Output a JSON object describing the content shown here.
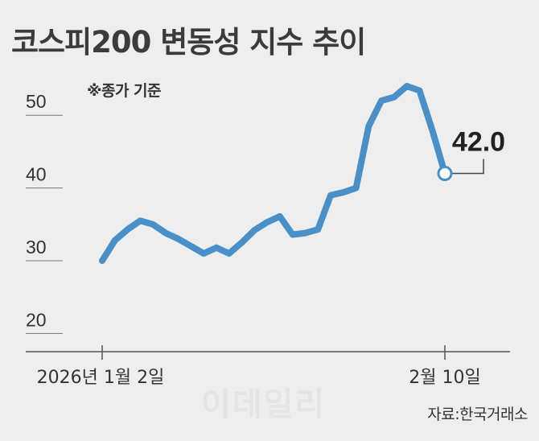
{
  "title": "코스피200 변동성 지수 추이",
  "note": "※종가 기준",
  "source": "자료:한국거래소",
  "watermark": "이데일리",
  "chart_data": {
    "type": "line",
    "x_ticks": [
      "2026년 1월 2일",
      "2월 10일"
    ],
    "y_ticks": [
      20,
      30,
      40,
      50
    ],
    "ylim": [
      17.5,
      55
    ],
    "line_color": "#4a90c8",
    "series": [
      {
        "values": [
          30.0,
          32.8,
          34.3,
          35.5,
          35.0,
          33.8,
          33.0,
          32.0,
          31.0,
          31.8,
          31.0,
          32.5,
          34.2,
          35.3,
          36.1,
          33.6,
          33.8,
          34.3,
          39.0,
          39.4,
          40.0,
          48.5,
          52.0,
          52.5,
          54.0,
          53.4,
          48.0,
          42.0
        ]
      }
    ],
    "end_value_label": "42.0"
  }
}
